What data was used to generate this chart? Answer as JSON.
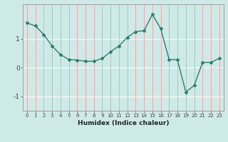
{
  "x": [
    0,
    1,
    2,
    3,
    4,
    5,
    6,
    7,
    8,
    9,
    10,
    11,
    12,
    13,
    14,
    15,
    16,
    17,
    18,
    19,
    20,
    21,
    22,
    23
  ],
  "y": [
    1.55,
    1.45,
    1.15,
    0.75,
    0.45,
    0.28,
    0.26,
    0.22,
    0.22,
    0.32,
    0.55,
    0.75,
    1.05,
    1.25,
    1.28,
    1.85,
    1.35,
    0.28,
    0.27,
    -0.85,
    -0.62,
    0.18,
    0.18,
    0.32
  ],
  "line_color": "#2a7f6f",
  "marker": "D",
  "markersize": 2.0,
  "linewidth": 1.0,
  "xlabel": "Humidex (Indice chaleur)",
  "xlim": [
    -0.5,
    23.5
  ],
  "ylim": [
    -1.5,
    2.2
  ],
  "yticks": [
    -1,
    0,
    1
  ],
  "xticks": [
    0,
    1,
    2,
    3,
    4,
    5,
    6,
    7,
    8,
    9,
    10,
    11,
    12,
    13,
    14,
    15,
    16,
    17,
    18,
    19,
    20,
    21,
    22,
    23
  ],
  "background_color": "#ceeae7",
  "grid_color_v": "#f0a0a0",
  "grid_color_h": "#ffffff",
  "tick_color": "#444444",
  "tick_fontsize": 5.0,
  "xlabel_fontsize": 6.5,
  "ytick_fontsize": 6.5
}
